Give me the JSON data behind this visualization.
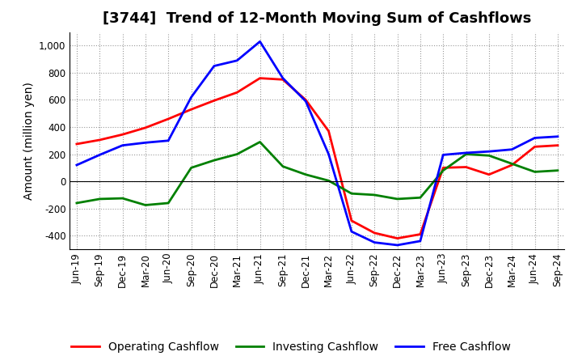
{
  "title": "[3744]  Trend of 12-Month Moving Sum of Cashflows",
  "ylabel": "Amount (million yen)",
  "x_labels": [
    "Jun-19",
    "Sep-19",
    "Dec-19",
    "Mar-20",
    "Jun-20",
    "Sep-20",
    "Dec-20",
    "Mar-21",
    "Jun-21",
    "Sep-21",
    "Dec-21",
    "Mar-22",
    "Jun-22",
    "Sep-22",
    "Dec-22",
    "Mar-23",
    "Jun-23",
    "Sep-23",
    "Dec-23",
    "Mar-24",
    "Jun-24",
    "Sep-24"
  ],
  "operating": [
    275,
    305,
    345,
    395,
    460,
    530,
    595,
    655,
    760,
    750,
    600,
    370,
    -290,
    -380,
    -420,
    -390,
    100,
    105,
    50,
    120,
    255,
    265
  ],
  "investing": [
    -160,
    -130,
    -125,
    -175,
    -160,
    100,
    155,
    200,
    290,
    110,
    50,
    5,
    -90,
    -100,
    -130,
    -120,
    80,
    200,
    190,
    130,
    70,
    80
  ],
  "free": [
    120,
    195,
    265,
    285,
    300,
    620,
    850,
    890,
    1030,
    760,
    590,
    200,
    -370,
    -450,
    -470,
    -440,
    195,
    210,
    220,
    235,
    320,
    330
  ],
  "ylim": [
    -500,
    1100
  ],
  "yticks": [
    -400,
    -200,
    0,
    200,
    400,
    600,
    800,
    1000
  ],
  "operating_color": "#ff0000",
  "investing_color": "#008000",
  "free_color": "#0000ff",
  "background_color": "#ffffff",
  "grid_color": "#999999",
  "title_fontsize": 13,
  "legend_fontsize": 10,
  "axis_label_fontsize": 10,
  "tick_fontsize": 8.5
}
